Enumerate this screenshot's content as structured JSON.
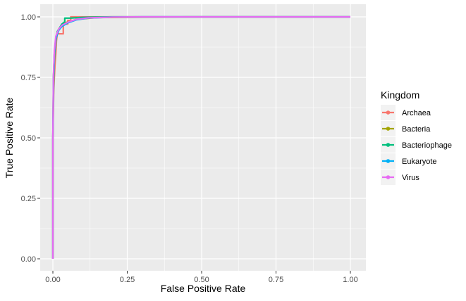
{
  "chart_data": {
    "type": "line",
    "title": "",
    "xlabel": "False Positive Rate",
    "ylabel": "True Positive Rate",
    "xlim": [
      0,
      1
    ],
    "ylim": [
      0,
      1
    ],
    "x_ticks": [
      "0.00",
      "0.25",
      "0.50",
      "0.75",
      "1.00"
    ],
    "y_ticks": [
      "0.00",
      "0.25",
      "0.50",
      "0.75",
      "1.00"
    ],
    "grid": true,
    "legend": {
      "title": "Kingdom",
      "position": "right"
    },
    "series": [
      {
        "name": "Archaea",
        "color": "#F8766D",
        "points": [
          [
            0.0,
            0.0
          ],
          [
            0.0,
            0.5
          ],
          [
            0.003,
            0.7
          ],
          [
            0.007,
            0.8
          ],
          [
            0.01,
            0.85
          ],
          [
            0.012,
            0.9
          ],
          [
            0.015,
            0.93
          ],
          [
            0.035,
            0.93
          ],
          [
            0.035,
            0.97
          ],
          [
            0.05,
            0.97
          ],
          [
            0.05,
            0.985
          ],
          [
            0.06,
            0.985
          ],
          [
            0.06,
            1.0
          ],
          [
            1.0,
            1.0
          ]
        ]
      },
      {
        "name": "Bacteria",
        "color": "#A3A500",
        "points": [
          [
            0.0,
            0.0
          ],
          [
            0.0,
            0.5
          ],
          [
            0.002,
            0.75
          ],
          [
            0.005,
            0.85
          ],
          [
            0.01,
            0.91
          ],
          [
            0.02,
            0.95
          ],
          [
            0.04,
            0.975
          ],
          [
            0.08,
            0.99
          ],
          [
            0.15,
            0.997
          ],
          [
            0.3,
            0.999
          ],
          [
            0.45,
            1.0
          ],
          [
            1.0,
            1.0
          ]
        ]
      },
      {
        "name": "Bacteriophage",
        "color": "#00BF7D",
        "points": [
          [
            0.0,
            0.0
          ],
          [
            0.0,
            0.5
          ],
          [
            0.003,
            0.75
          ],
          [
            0.006,
            0.85
          ],
          [
            0.01,
            0.9
          ],
          [
            0.015,
            0.94
          ],
          [
            0.025,
            0.96
          ],
          [
            0.03,
            0.97
          ],
          [
            0.04,
            0.98
          ],
          [
            0.04,
            0.995
          ],
          [
            0.06,
            0.995
          ],
          [
            0.1,
            0.998
          ],
          [
            0.2,
            1.0
          ],
          [
            1.0,
            1.0
          ]
        ]
      },
      {
        "name": "Eukaryote",
        "color": "#00B0F6",
        "points": [
          [
            0.0,
            0.0
          ],
          [
            0.0,
            0.5
          ],
          [
            0.002,
            0.75
          ],
          [
            0.005,
            0.85
          ],
          [
            0.01,
            0.91
          ],
          [
            0.02,
            0.945
          ],
          [
            0.03,
            0.96
          ],
          [
            0.05,
            0.975
          ],
          [
            0.08,
            0.988
          ],
          [
            0.12,
            0.995
          ],
          [
            0.2,
            0.999
          ],
          [
            0.3,
            1.0
          ],
          [
            1.0,
            1.0
          ]
        ]
      },
      {
        "name": "Virus",
        "color": "#E76BF3",
        "points": [
          [
            0.0,
            0.0
          ],
          [
            0.0,
            0.5
          ],
          [
            0.002,
            0.76
          ],
          [
            0.005,
            0.86
          ],
          [
            0.01,
            0.92
          ],
          [
            0.02,
            0.95
          ],
          [
            0.03,
            0.965
          ],
          [
            0.05,
            0.978
          ],
          [
            0.08,
            0.99
          ],
          [
            0.12,
            0.996
          ],
          [
            0.2,
            0.999
          ],
          [
            0.3,
            1.0
          ],
          [
            1.0,
            1.0
          ]
        ]
      }
    ]
  }
}
